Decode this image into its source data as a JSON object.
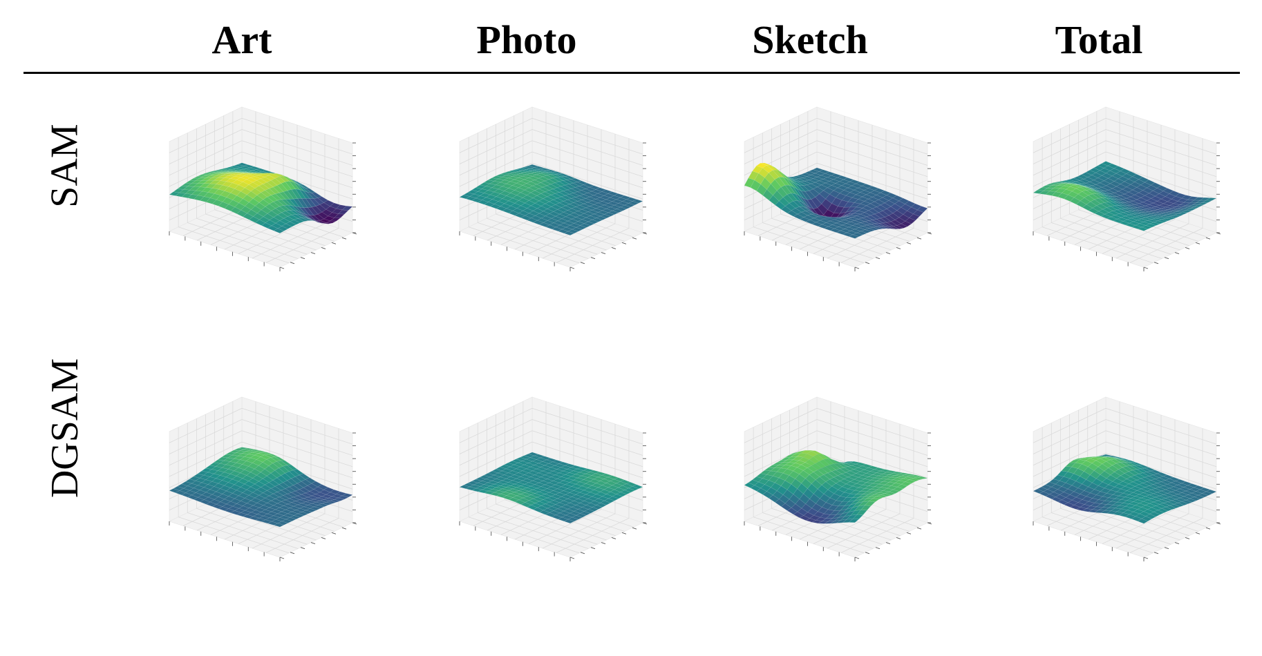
{
  "columns": [
    "Art",
    "Photo",
    "Sketch",
    "Total"
  ],
  "rows": [
    "SAM",
    "DGSAM"
  ],
  "colormap": [
    "#440154",
    "#3b528b",
    "#21918c",
    "#5ec962",
    "#fde725"
  ],
  "chart_data": [
    {
      "type": "surface",
      "row": "SAM",
      "column": "Art",
      "grid": true,
      "peak": 0.95,
      "roughness": 0.75,
      "seed": 11
    },
    {
      "type": "surface",
      "row": "SAM",
      "column": "Photo",
      "grid": true,
      "peak": 0.3,
      "roughness": 0.2,
      "seed": 21
    },
    {
      "type": "surface",
      "row": "SAM",
      "column": "Sketch",
      "grid": true,
      "peak": 1.0,
      "roughness": 1.0,
      "seed": 31
    },
    {
      "type": "surface",
      "row": "SAM",
      "column": "Total",
      "grid": true,
      "peak": 0.55,
      "roughness": 0.45,
      "seed": 41
    },
    {
      "type": "surface",
      "row": "DGSAM",
      "column": "Art",
      "grid": true,
      "peak": 0.5,
      "roughness": 0.4,
      "seed": 51
    },
    {
      "type": "surface",
      "row": "DGSAM",
      "column": "Photo",
      "grid": true,
      "peak": 0.25,
      "roughness": 0.08,
      "seed": 61
    },
    {
      "type": "surface",
      "row": "DGSAM",
      "column": "Sketch",
      "grid": true,
      "peak": 0.7,
      "roughness": 0.7,
      "seed": 71
    },
    {
      "type": "surface",
      "row": "DGSAM",
      "column": "Total",
      "grid": true,
      "peak": 0.55,
      "roughness": 0.4,
      "seed": 81
    }
  ]
}
